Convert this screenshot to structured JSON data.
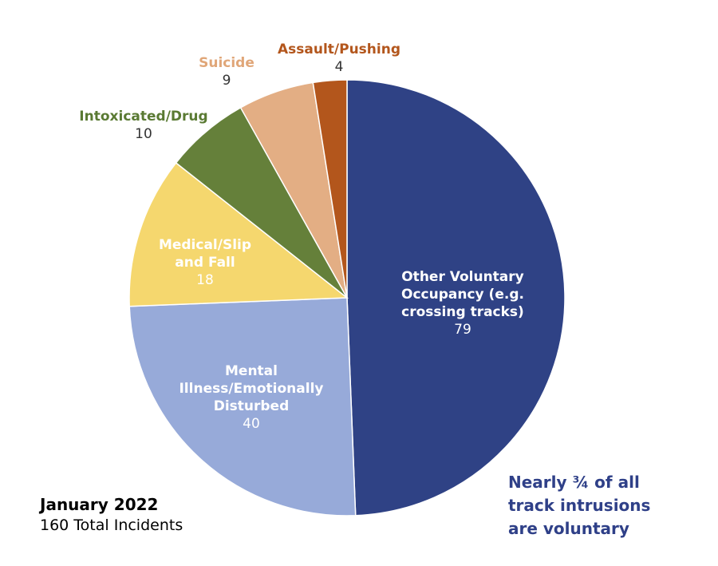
{
  "chart_data": {
    "type": "pie",
    "total": 160,
    "slices": [
      {
        "name_lines": [
          "Other Voluntary",
          "Occupancy (e.g.",
          "crossing tracks)"
        ],
        "value": 79,
        "color": "#2f4285",
        "label_color": "#ffffff",
        "value_color": "#ffffff",
        "label_inside": true
      },
      {
        "name_lines": [
          "Mental",
          "Illness/Emotionally",
          "Disturbed"
        ],
        "value": 40,
        "color": "#97aad9",
        "label_color": "#ffffff",
        "value_color": "#ffffff",
        "label_inside": true
      },
      {
        "name_lines": [
          "Medical/Slip",
          "and Fall"
        ],
        "value": 18,
        "color": "#f5d76e",
        "label_color": "#ffffff",
        "value_color": "#ffffff",
        "label_inside": true
      },
      {
        "name_lines": [
          "Intoxicated/Drug"
        ],
        "value": 10,
        "color": "#65803a",
        "label_color": "#5a7a33",
        "value_color": "#333333",
        "label_inside": false
      },
      {
        "name_lines": [
          "Suicide"
        ],
        "value": 9,
        "color": "#e3ae84",
        "label_color": "#e0a678",
        "value_color": "#333333",
        "label_inside": false
      },
      {
        "name_lines": [
          "Assault/Pushing"
        ],
        "value": 4,
        "color": "#b3561c",
        "label_color": "#b3561c",
        "value_color": "#333333",
        "label_inside": false
      }
    ]
  },
  "footer": {
    "title": "January 2022",
    "subtitle": "160 Total Incidents"
  },
  "callout": {
    "lines": [
      "Nearly ¾ of all",
      "track intrusions",
      "are voluntary"
    ]
  }
}
